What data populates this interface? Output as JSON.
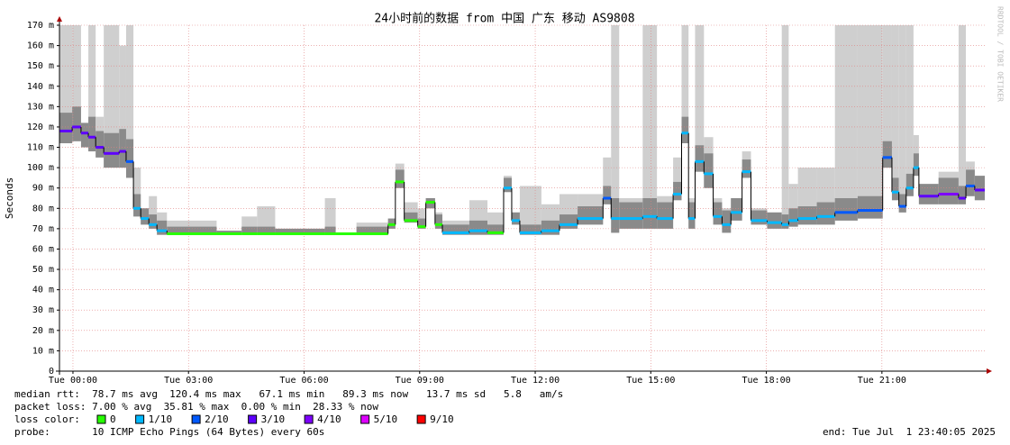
{
  "chart_data": {
    "type": "smokeping",
    "title": "24小时前的数据 from 中国 广东 移动 AS9808",
    "y_label": "Seconds",
    "side_text": "RRDTOOL / TOBI OETIKER",
    "xlim": [
      -0.35,
      23.67
    ],
    "xticks": [
      {
        "value": 0,
        "label": "Tue 00:00"
      },
      {
        "value": 3,
        "label": "Tue 03:00"
      },
      {
        "value": 6,
        "label": "Tue 06:00"
      },
      {
        "value": 9,
        "label": "Tue 09:00"
      },
      {
        "value": 12,
        "label": "Tue 12:00"
      },
      {
        "value": 15,
        "label": "Tue 15:00"
      },
      {
        "value": 18,
        "label": "Tue 18:00"
      },
      {
        "value": 21,
        "label": "Tue 21:00"
      }
    ],
    "ylim": [
      0,
      170
    ],
    "yticks": [
      0,
      {
        "value": 10,
        "label": "10 m"
      },
      {
        "value": 20,
        "label": "20 m"
      },
      {
        "value": 30,
        "label": "30 m"
      },
      {
        "value": 40,
        "label": "40 m"
      },
      {
        "value": 50,
        "label": "50 m"
      },
      {
        "value": 60,
        "label": "60 m"
      },
      {
        "value": 70,
        "label": "70 m"
      },
      {
        "value": 80,
        "label": "80 m"
      },
      {
        "value": 90,
        "label": "90 m"
      },
      {
        "value": 100,
        "label": "100 m"
      },
      {
        "value": 110,
        "label": "110 m"
      },
      {
        "value": 120,
        "label": "120 m"
      },
      {
        "value": 130,
        "label": "130 m"
      },
      {
        "value": 140,
        "label": "140 m"
      },
      {
        "value": 150,
        "label": "150 m"
      },
      {
        "value": 160,
        "label": "160 m"
      },
      {
        "value": 170,
        "label": "170 m"
      }
    ],
    "grid": true,
    "x": [
      -0.35,
      -0.02,
      0.21,
      0.4,
      0.59,
      0.8,
      1.2,
      1.38,
      1.57,
      1.76,
      1.97,
      2.18,
      2.44,
      3.73,
      4.38,
      4.78,
      5.25,
      6.54,
      6.82,
      7.36,
      8.18,
      8.37,
      8.6,
      8.95,
      9.16,
      9.4,
      9.59,
      10.29,
      10.76,
      11.18,
      11.39,
      11.6,
      12.16,
      12.63,
      13.1,
      13.76,
      13.97,
      14.18,
      14.79,
      15.16,
      15.58,
      15.8,
      15.98,
      16.15,
      16.38,
      16.62,
      16.85,
      17.08,
      17.37,
      17.6,
      18.02,
      18.4,
      18.58,
      18.82,
      19.31,
      19.78,
      20.37,
      21.02,
      21.26,
      21.44,
      21.63,
      21.82,
      21.96,
      22.47,
      22.99,
      23.18,
      23.41
    ],
    "median": [
      118,
      120,
      117,
      115,
      110,
      107,
      108,
      103,
      80,
      75,
      72,
      69,
      67.5,
      67.5,
      67.5,
      67.5,
      67.5,
      67.5,
      67.5,
      67.5,
      72,
      93,
      74,
      71,
      83,
      72,
      68,
      69,
      68,
      90,
      74,
      68,
      69,
      72,
      75,
      85,
      75,
      75,
      76,
      75,
      87,
      117,
      75,
      103,
      97,
      76,
      72,
      78,
      98,
      74,
      73,
      72,
      74,
      75,
      76,
      78,
      79,
      105,
      88,
      81,
      90,
      100,
      86,
      87,
      85,
      91,
      89
    ],
    "loss": [
      3,
      3,
      3,
      3,
      3,
      3,
      3,
      2,
      1,
      1,
      1,
      1,
      0,
      0,
      0,
      0,
      0,
      0,
      0,
      0,
      0,
      0,
      0,
      0,
      0,
      0,
      1,
      1,
      0,
      1,
      1,
      1,
      1,
      1,
      1,
      2,
      1,
      1,
      1,
      1,
      1,
      1,
      1,
      1,
      1,
      1,
      1,
      1,
      1,
      1,
      1,
      1,
      1,
      1,
      1,
      2,
      2,
      2,
      1,
      2,
      1,
      1,
      3,
      4,
      3,
      2,
      3
    ],
    "smoke_min": [
      112,
      113,
      110,
      108,
      105,
      100,
      100,
      95,
      76,
      72,
      70,
      67,
      67,
      67,
      67,
      67,
      67,
      67,
      67,
      67,
      70,
      90,
      73,
      70,
      80,
      70,
      67,
      67,
      67,
      88,
      72,
      67,
      67,
      70,
      72,
      82,
      68,
      70,
      70,
      70,
      84,
      112,
      70,
      98,
      90,
      72,
      68,
      74,
      95,
      72,
      70,
      70,
      71,
      72,
      72,
      74,
      75,
      100,
      84,
      78,
      86,
      96,
      82,
      82,
      82,
      86,
      84
    ],
    "smoke_max": [
      170,
      170,
      122,
      170,
      125,
      170,
      160,
      170,
      100,
      80,
      86,
      78,
      74,
      69,
      76,
      81,
      70,
      85,
      68,
      73,
      75,
      102,
      83,
      80,
      85,
      78,
      74,
      84,
      78,
      96,
      78,
      91,
      82,
      87,
      87,
      105,
      170,
      85,
      170,
      86,
      105,
      170,
      85,
      170,
      115,
      85,
      80,
      85,
      108,
      80,
      78,
      170,
      92,
      100,
      100,
      170,
      170,
      170,
      170,
      170,
      170,
      116,
      92,
      98,
      170,
      103,
      96
    ],
    "legend": {
      "title": "loss color:",
      "items": [
        {
          "label": "0",
          "loss": 0,
          "color": "#26ff00"
        },
        {
          "label": "1/10",
          "loss": 1,
          "color": "#00b8ff"
        },
        {
          "label": "2/10",
          "loss": 2,
          "color": "#0059ff"
        },
        {
          "label": "3/10",
          "loss": 3,
          "color": "#5e00ff"
        },
        {
          "label": "4/10",
          "loss": 4,
          "color": "#7e00ff"
        },
        {
          "label": "5/10",
          "loss": 5,
          "color": "#dd00ff"
        },
        {
          "label": "9/10",
          "loss": 9,
          "color": "#ff0000"
        }
      ]
    },
    "stats": [
      "median rtt:  78.7 ms avg  120.4 ms max   67.1 ms min   89.3 ms now   13.7 ms sd   5.8   am/s",
      "packet loss: 7.00 % avg  35.81 % max  0.00 % min  28.33 % now"
    ],
    "probe": "probe:       10 ICMP Echo Pings (64 Bytes) every 60s",
    "end": "end: Tue Jul  1 23:40:05 2025"
  }
}
